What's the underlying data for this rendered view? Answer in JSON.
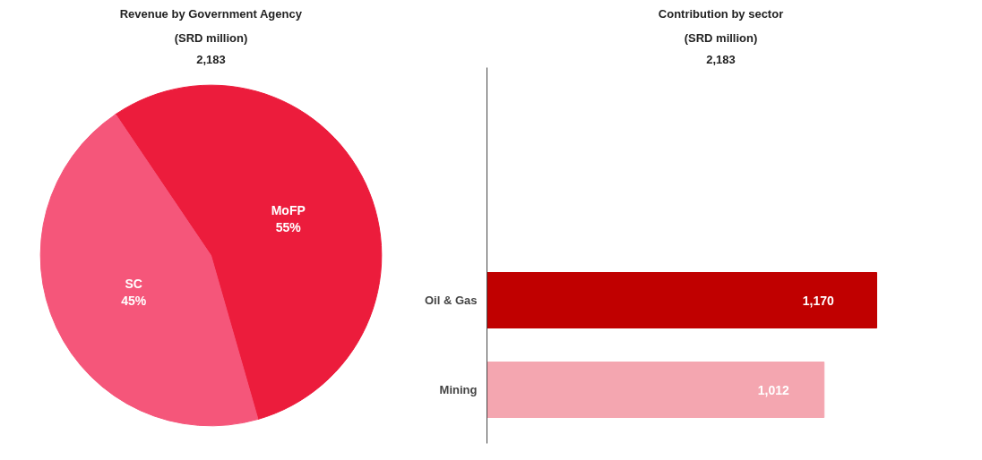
{
  "chart_data": [
    {
      "type": "pie",
      "title": "Revenue by Government Agency",
      "subtitle": "(SRD million)",
      "annotations": [
        "2,183"
      ],
      "categories": [
        "MoFP",
        "SC"
      ],
      "values": [
        55,
        45
      ],
      "value_labels": [
        "55%",
        "45%"
      ],
      "colors": [
        "#ec1c3c",
        "#f5567a"
      ]
    },
    {
      "type": "bar",
      "orientation": "horizontal",
      "title": "Contribution by sector",
      "subtitle": "(SRD million)",
      "annotations": [
        "2,183"
      ],
      "categories": [
        "Oil & Gas",
        "Mining"
      ],
      "values": [
        1170,
        1012
      ],
      "value_labels": [
        "1,170",
        "1,012"
      ],
      "colors": [
        "#c00000",
        "#f4a6b0"
      ],
      "grid": false
    }
  ]
}
